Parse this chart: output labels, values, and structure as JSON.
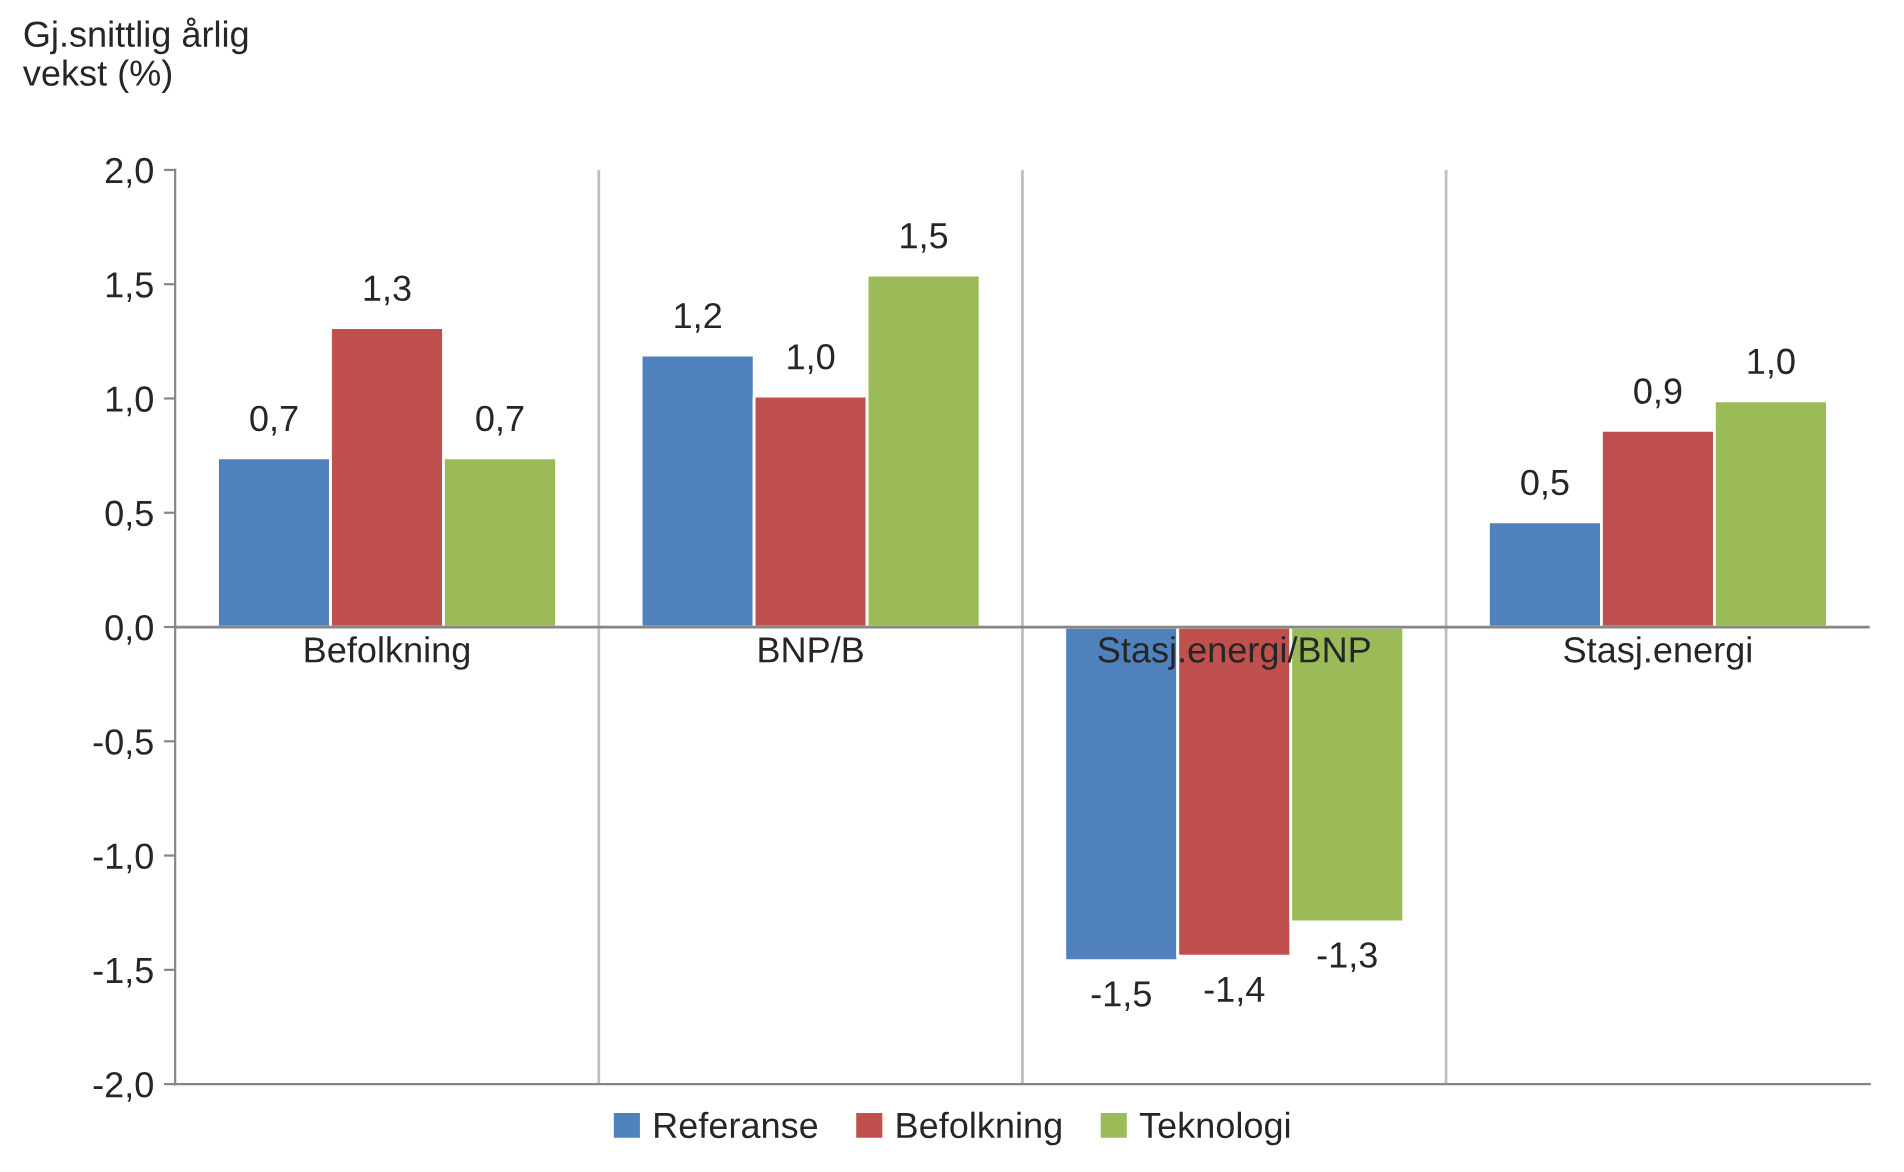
{
  "chart_data": {
    "type": "bar",
    "ylabel": "Gj.snittlig årlig\nvekst (%)",
    "categories": [
      "Befolkning",
      "BNP/B",
      "Stasj.energi/BNP",
      "Stasj.energi"
    ],
    "series": [
      {
        "name": "Referanse",
        "color": "#4f81bd",
        "values": [
          0.74,
          1.19,
          -1.46,
          0.46
        ],
        "value_labels": [
          "0,7",
          "1,2",
          "-1,5",
          "0,5"
        ]
      },
      {
        "name": "Befolkning",
        "color": "#c0504d",
        "values": [
          1.31,
          1.01,
          -1.44,
          0.86
        ],
        "value_labels": [
          "1,3",
          "1,0",
          "-1,4",
          "0,9"
        ]
      },
      {
        "name": "Teknologi",
        "color": "#9bbb59",
        "values": [
          0.74,
          1.54,
          -1.29,
          0.99
        ],
        "value_labels": [
          "0,7",
          "1,5",
          "-1,3",
          "1,0"
        ]
      }
    ],
    "ylim": [
      -2.0,
      2.0
    ],
    "yticks": [
      {
        "value": -2.0,
        "label": "-2,0"
      },
      {
        "value": -1.5,
        "label": "-1,5"
      },
      {
        "value": -1.0,
        "label": "-1,0"
      },
      {
        "value": -0.5,
        "label": "-0,5"
      },
      {
        "value": 0.0,
        "label": "0,0"
      },
      {
        "value": 0.5,
        "label": "0,5"
      },
      {
        "value": 1.0,
        "label": "1,0"
      },
      {
        "value": 1.5,
        "label": "1,5"
      },
      {
        "value": 2.0,
        "label": "2,0"
      }
    ],
    "grid": "x",
    "legend": "bottom"
  }
}
